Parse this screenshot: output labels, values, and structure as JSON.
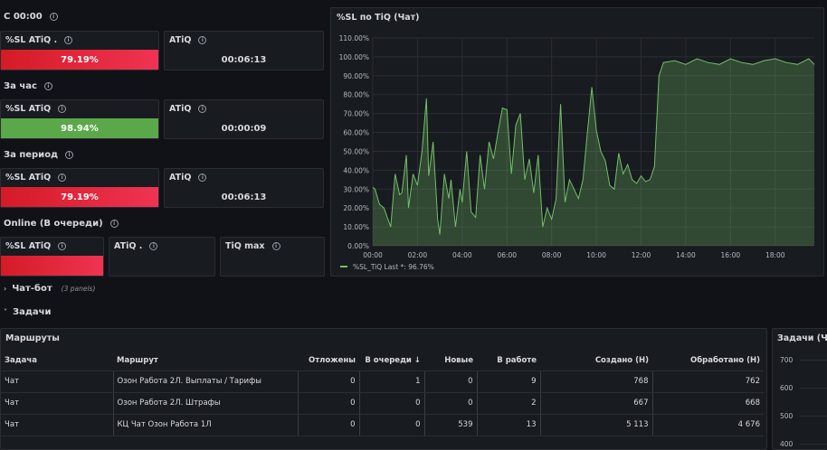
{
  "sections": {
    "since_midnight": "С 00:00",
    "per_hour": "За час",
    "per_period": "За период",
    "online": "Online (В очереди)"
  },
  "stats": {
    "row1": {
      "sl_label": "%SL ATiQ .",
      "sl_value": "79.19%",
      "atiq_label": "ATiQ",
      "atiq_value": "00:06:13"
    },
    "row2": {
      "sl_label": "%SL ATiQ",
      "sl_value": "98.94%",
      "atiq_label": "ATiQ",
      "atiq_value": "00:00:09"
    },
    "row3": {
      "sl_label": "%SL ATiQ",
      "sl_value": "79.19%",
      "atiq_label": "ATiQ",
      "atiq_value": "00:06:13"
    },
    "row4": {
      "sl_label": "%SL ATiQ",
      "atiq_label": "ATiQ .",
      "tiqmax_label": "TiQ max"
    }
  },
  "colors": {
    "red": "#e8243a",
    "green": "#5aa84a",
    "line": "#73bf69"
  },
  "chart_data": {
    "type": "area",
    "title": "%SL по TiQ (Чат)",
    "yticks": [
      "0.00%",
      "10.00%",
      "20.00%",
      "30.00%",
      "40.00%",
      "50.00%",
      "60.00%",
      "70.00%",
      "80.00%",
      "90.00%",
      "100.00%",
      "110.00%"
    ],
    "xticks": [
      "00:00",
      "02:00",
      "04:00",
      "06:00",
      "08:00",
      "10:00",
      "12:00",
      "14:00",
      "16:00",
      "18:00"
    ],
    "ylim": [
      0,
      110
    ],
    "xlim": [
      0,
      19.75
    ],
    "series": [
      {
        "name": "%SL_TiQ",
        "x": [
          0,
          0.1,
          0.3,
          0.5,
          0.8,
          1.0,
          1.2,
          1.3,
          1.5,
          1.6,
          1.8,
          2.0,
          2.2,
          2.4,
          2.5,
          2.7,
          2.9,
          3.0,
          3.2,
          3.4,
          3.5,
          3.7,
          3.9,
          4.0,
          4.2,
          4.4,
          4.6,
          4.8,
          5.0,
          5.2,
          5.4,
          5.6,
          5.8,
          6.0,
          6.2,
          6.4,
          6.6,
          6.8,
          7.0,
          7.2,
          7.4,
          7.6,
          7.8,
          8.0,
          8.2,
          8.4,
          8.6,
          8.8,
          9.0,
          9.2,
          9.4,
          9.6,
          9.8,
          10.0,
          10.2,
          10.4,
          10.6,
          10.8,
          11.0,
          11.2,
          11.4,
          11.6,
          11.8,
          12.0,
          12.2,
          12.4,
          12.6,
          12.8,
          13.0,
          13.5,
          14.0,
          14.5,
          15.0,
          15.5,
          16.0,
          16.5,
          17.0,
          17.5,
          18.0,
          18.5,
          19.0,
          19.5,
          19.75
        ],
        "y": [
          31,
          30,
          22,
          20,
          10,
          38,
          27,
          28,
          48,
          20,
          38,
          32,
          50,
          78,
          37,
          55,
          14,
          6,
          38,
          25,
          35,
          10,
          30,
          23,
          50,
          18,
          15,
          48,
          30,
          55,
          46,
          60,
          73,
          72,
          38,
          64,
          70,
          35,
          46,
          28,
          48,
          10,
          20,
          14,
          25,
          75,
          23,
          35,
          30,
          25,
          35,
          60,
          84,
          61,
          50,
          45,
          32,
          30,
          49,
          38,
          43,
          35,
          33,
          37,
          34,
          35,
          42,
          90,
          97,
          98,
          96,
          99,
          97,
          96,
          99,
          97,
          96,
          98,
          99,
          97,
          96,
          99,
          96
        ]
      }
    ],
    "legend_last": "Last *: 96.76%",
    "legend_placement": "bottom-left",
    "grid": true
  },
  "rows": {
    "chatbot": {
      "label": "Чат-бот",
      "count": "(3 panels)"
    },
    "tasks": {
      "label": "Задачи"
    }
  },
  "routes": {
    "title": "Маршруты",
    "headers": [
      "Задача",
      "Маршрут",
      "Отложены",
      "В очереди",
      "Новые",
      "В работе",
      "Создано (Н)",
      "Обработано (Н)"
    ],
    "sort_arrow": "↓",
    "rows": [
      [
        "Чат",
        "Озон Работа 2Л. Выплаты / Тарифы",
        "0",
        "1",
        "0",
        "9",
        "768",
        "762"
      ],
      [
        "Чат",
        "Озон Работа 2Л. Штрафы",
        "0",
        "0",
        "0",
        "2",
        "667",
        "668"
      ],
      [
        "Чат",
        "КЦ Чат Озон Работа 1Л",
        "0",
        "0",
        "539",
        "13",
        "5 113",
        "4 676"
      ]
    ]
  },
  "tasks_panel": {
    "title": "Задачи (Чат",
    "yticks": [
      "700",
      "600",
      "500",
      "400"
    ]
  }
}
